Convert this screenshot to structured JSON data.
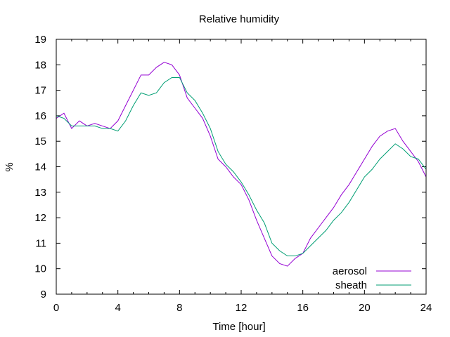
{
  "chart_data": {
    "type": "line",
    "title": "Relative humidity",
    "xlabel": "Time [hour]",
    "ylabel": "%",
    "xlim": [
      0,
      24
    ],
    "ylim": [
      9,
      19
    ],
    "xticks": [
      0,
      4,
      8,
      12,
      16,
      20,
      24
    ],
    "yticks": [
      9,
      10,
      11,
      12,
      13,
      14,
      15,
      16,
      17,
      18,
      19
    ],
    "grid": false,
    "legend_position": "bottom-right",
    "series": [
      {
        "name": "aerosol",
        "color": "#9400d3",
        "points": [
          [
            0.0,
            15.9
          ],
          [
            0.5,
            16.1
          ],
          [
            1.0,
            15.5
          ],
          [
            1.5,
            15.8
          ],
          [
            2.0,
            15.6
          ],
          [
            2.5,
            15.7
          ],
          [
            3.0,
            15.6
          ],
          [
            3.5,
            15.5
          ],
          [
            4.0,
            15.8
          ],
          [
            4.5,
            16.4
          ],
          [
            5.0,
            17.0
          ],
          [
            5.5,
            17.6
          ],
          [
            6.0,
            17.6
          ],
          [
            6.5,
            17.9
          ],
          [
            7.0,
            18.1
          ],
          [
            7.5,
            18.0
          ],
          [
            8.0,
            17.6
          ],
          [
            8.5,
            16.7
          ],
          [
            9.0,
            16.3
          ],
          [
            9.5,
            15.9
          ],
          [
            10.0,
            15.2
          ],
          [
            10.5,
            14.3
          ],
          [
            11.0,
            14.0
          ],
          [
            11.5,
            13.6
          ],
          [
            12.0,
            13.3
          ],
          [
            12.5,
            12.7
          ],
          [
            13.0,
            11.9
          ],
          [
            13.5,
            11.2
          ],
          [
            14.0,
            10.5
          ],
          [
            14.5,
            10.2
          ],
          [
            15.0,
            10.1
          ],
          [
            15.5,
            10.4
          ],
          [
            16.0,
            10.6
          ],
          [
            16.5,
            11.2
          ],
          [
            17.0,
            11.6
          ],
          [
            17.5,
            12.0
          ],
          [
            18.0,
            12.4
          ],
          [
            18.5,
            12.9
          ],
          [
            19.0,
            13.3
          ],
          [
            19.5,
            13.8
          ],
          [
            20.0,
            14.3
          ],
          [
            20.5,
            14.8
          ],
          [
            21.0,
            15.2
          ],
          [
            21.5,
            15.4
          ],
          [
            22.0,
            15.5
          ],
          [
            22.5,
            15.0
          ],
          [
            23.0,
            14.6
          ],
          [
            23.5,
            14.2
          ],
          [
            24.0,
            13.6
          ]
        ]
      },
      {
        "name": "sheath",
        "color": "#009e73",
        "points": [
          [
            0.0,
            16.0
          ],
          [
            0.5,
            15.9
          ],
          [
            1.0,
            15.6
          ],
          [
            1.5,
            15.6
          ],
          [
            2.0,
            15.6
          ],
          [
            2.5,
            15.6
          ],
          [
            3.0,
            15.5
          ],
          [
            3.5,
            15.5
          ],
          [
            4.0,
            15.4
          ],
          [
            4.5,
            15.8
          ],
          [
            5.0,
            16.4
          ],
          [
            5.5,
            16.9
          ],
          [
            6.0,
            16.8
          ],
          [
            6.5,
            16.9
          ],
          [
            7.0,
            17.3
          ],
          [
            7.5,
            17.5
          ],
          [
            8.0,
            17.5
          ],
          [
            8.5,
            16.9
          ],
          [
            9.0,
            16.6
          ],
          [
            9.5,
            16.1
          ],
          [
            10.0,
            15.5
          ],
          [
            10.5,
            14.6
          ],
          [
            11.0,
            14.1
          ],
          [
            11.5,
            13.8
          ],
          [
            12.0,
            13.4
          ],
          [
            12.5,
            12.9
          ],
          [
            13.0,
            12.3
          ],
          [
            13.5,
            11.8
          ],
          [
            14.0,
            11.0
          ],
          [
            14.5,
            10.7
          ],
          [
            15.0,
            10.5
          ],
          [
            15.5,
            10.5
          ],
          [
            16.0,
            10.6
          ],
          [
            16.5,
            10.9
          ],
          [
            17.0,
            11.2
          ],
          [
            17.5,
            11.5
          ],
          [
            18.0,
            11.9
          ],
          [
            18.5,
            12.2
          ],
          [
            19.0,
            12.6
          ],
          [
            19.5,
            13.1
          ],
          [
            20.0,
            13.6
          ],
          [
            20.5,
            13.9
          ],
          [
            21.0,
            14.3
          ],
          [
            21.5,
            14.6
          ],
          [
            22.0,
            14.9
          ],
          [
            22.5,
            14.7
          ],
          [
            23.0,
            14.4
          ],
          [
            23.5,
            14.3
          ],
          [
            24.0,
            13.9
          ]
        ]
      }
    ]
  }
}
